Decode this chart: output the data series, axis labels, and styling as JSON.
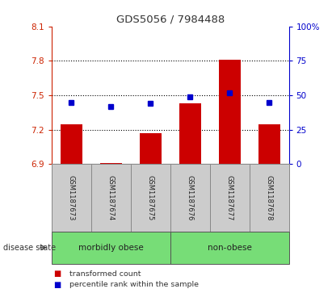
{
  "title": "GDS5056 / 7984488",
  "samples": [
    "GSM1187673",
    "GSM1187674",
    "GSM1187675",
    "GSM1187676",
    "GSM1187677",
    "GSM1187678"
  ],
  "red_values": [
    7.25,
    6.91,
    7.17,
    7.43,
    7.81,
    7.25
  ],
  "blue_values": [
    45,
    42,
    44,
    49,
    52,
    45
  ],
  "ylim_left": [
    6.9,
    8.1
  ],
  "ylim_right": [
    0,
    100
  ],
  "yticks_left": [
    6.9,
    7.2,
    7.5,
    7.8,
    8.1
  ],
  "yticks_right": [
    0,
    25,
    50,
    75,
    100
  ],
  "ytick_labels_left": [
    "6.9",
    "7.2",
    "7.5",
    "7.8",
    "8.1"
  ],
  "ytick_labels_right": [
    "0",
    "25",
    "50",
    "75",
    "100%"
  ],
  "group_defs": [
    {
      "xmin": -0.5,
      "xmax": 2.5,
      "label": "morbidly obese"
    },
    {
      "xmin": 2.5,
      "xmax": 5.5,
      "label": "non-obese"
    }
  ],
  "disease_state_label": "disease state",
  "legend_red": "transformed count",
  "legend_blue": "percentile rank within the sample",
  "bar_color": "#CC0000",
  "square_color": "#0000CC",
  "bar_width": 0.55,
  "grid_color": "black",
  "title_color": "#333333",
  "left_axis_color": "#CC2200",
  "right_axis_color": "#0000CC",
  "sample_box_color": "#CCCCCC",
  "sample_box_edge": "#888888",
  "group_box_color": "#77DD77",
  "group_box_edge": "#555555",
  "hgrid_ticks": [
    7.2,
    7.5,
    7.8
  ]
}
